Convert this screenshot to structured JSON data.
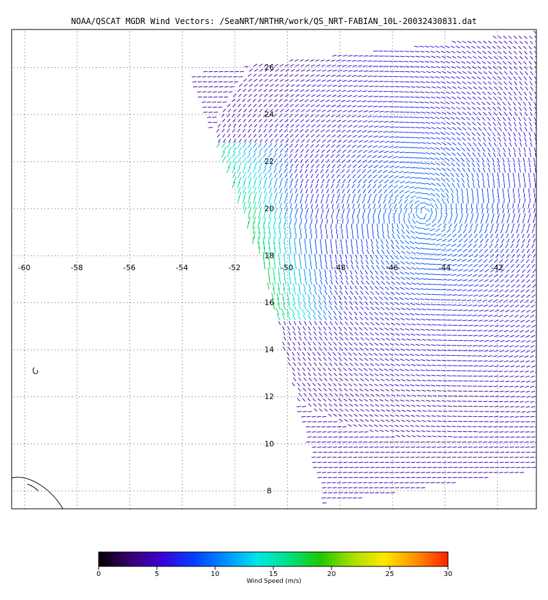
{
  "title": "NOAA/QSCAT MGDR Wind Vectors: /SeaNRT/NRTHR/work/QS_NRT-FABIAN_10L-20032430831.dat",
  "lon_labels": [
    "-60",
    "-58",
    "-56",
    "-54",
    "-52",
    "-50",
    "-48",
    "-46",
    "-44",
    "-42"
  ],
  "lat_labels": [
    "26",
    "24",
    "22",
    "20",
    "18",
    "16",
    "14",
    "12",
    "10",
    "8"
  ],
  "colorbar": {
    "label": "Wind Speed (m/s)",
    "ticks": [
      "0",
      "5",
      "10",
      "15",
      "20",
      "25",
      "30"
    ],
    "colors": [
      "#000000",
      "#3a0070",
      "#3c00d8",
      "#0040ff",
      "#0090ff",
      "#00e8e8",
      "#00e080",
      "#20c800",
      "#a8e000",
      "#ffe800",
      "#ff9000",
      "#ff2000"
    ]
  }
}
